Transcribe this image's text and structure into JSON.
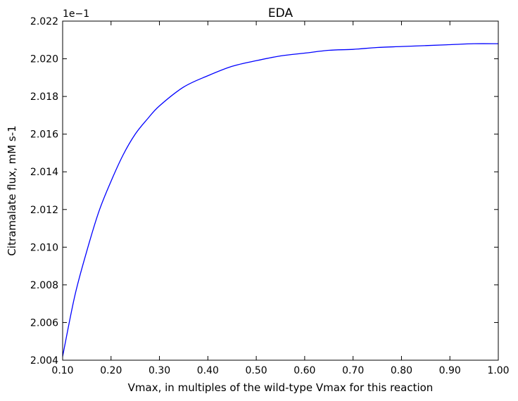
{
  "chart_data": {
    "type": "line",
    "title": "EDA",
    "xlabel": "Vmax, in multiples of the wild-type Vmax for this reaction",
    "ylabel": "Citramalate flux, mM s-1",
    "y_offset_label": "1e−1",
    "xlim": [
      0.1,
      1.0
    ],
    "ylim": [
      2.004,
      2.022
    ],
    "grid": false,
    "x_ticks": [
      0.1,
      0.2,
      0.3,
      0.4,
      0.5,
      0.6,
      0.7,
      0.8,
      0.9,
      1.0
    ],
    "x_tick_labels": [
      "0.10",
      "0.20",
      "0.30",
      "0.40",
      "0.50",
      "0.60",
      "0.70",
      "0.80",
      "0.90",
      "1.00"
    ],
    "y_ticks": [
      2.004,
      2.006,
      2.008,
      2.01,
      2.012,
      2.014,
      2.016,
      2.018,
      2.02,
      2.022
    ],
    "y_tick_labels": [
      "2.004",
      "2.006",
      "2.008",
      "2.010",
      "2.012",
      "2.014",
      "2.016",
      "2.018",
      "2.020",
      "2.022"
    ],
    "series": [
      {
        "color": "#0000ff",
        "x": [
          0.1,
          0.125,
          0.15,
          0.175,
          0.2,
          0.225,
          0.25,
          0.275,
          0.3,
          0.35,
          0.4,
          0.45,
          0.5,
          0.55,
          0.6,
          0.65,
          0.7,
          0.75,
          0.8,
          0.85,
          0.9,
          0.95,
          1.0
        ],
        "y": [
          2.0042,
          2.0074,
          2.0098,
          2.0119,
          2.0135,
          2.0149,
          2.016,
          2.0168,
          2.0175,
          2.0185,
          2.0191,
          2.0196,
          2.0199,
          2.02015,
          2.0203,
          2.02045,
          2.0205,
          2.0206,
          2.02065,
          2.0207,
          2.02075,
          2.0208,
          2.0208
        ]
      }
    ]
  }
}
